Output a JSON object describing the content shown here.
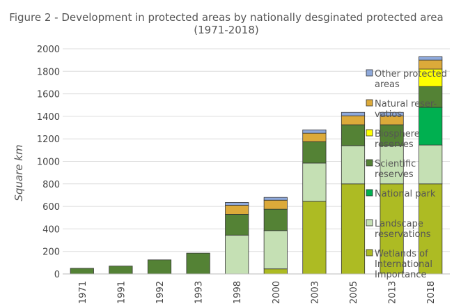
{
  "chart_data": {
    "type": "bar",
    "stacked": true,
    "title_lines": [
      "Figure 2 -  Development in protected areas by nationally desginated protected area",
      "(1971-2018)"
    ],
    "xlabel": "",
    "ylabel": "Square km",
    "ylim": [
      0,
      2000
    ],
    "yticks": [
      "0",
      "200",
      "400",
      "600",
      "800",
      "1000",
      "1200",
      "1400",
      "1600",
      "1800",
      "2000"
    ],
    "grid": true,
    "legend_placement": "right",
    "categories": [
      "1971",
      "1991",
      "1992",
      "1993",
      "1998",
      "2000",
      "2003",
      "2005",
      "2013",
      "2018"
    ],
    "series": [
      {
        "name": "Wetlands of International Importance",
        "legend_lines": [
          "Wetlands of",
          "International",
          "Importance"
        ],
        "color": "#adbb23",
        "values": [
          0,
          0,
          0,
          0,
          0,
          45,
          645,
          800,
          800,
          800
        ]
      },
      {
        "name": "Landscape reservations",
        "legend_lines": [
          "Landscape",
          "reservations"
        ],
        "color": "#c5e0b4",
        "values": [
          0,
          0,
          0,
          0,
          345,
          340,
          340,
          340,
          340,
          345
        ]
      },
      {
        "name": "National park",
        "legend_lines": [
          "National park"
        ],
        "color": "#00b050",
        "values": [
          0,
          0,
          0,
          0,
          0,
          0,
          0,
          0,
          0,
          335
        ]
      },
      {
        "name": "Scientific reserves",
        "legend_lines": [
          "Scientific",
          "reserves"
        ],
        "color": "#548235",
        "values": [
          50,
          70,
          125,
          185,
          185,
          190,
          190,
          185,
          185,
          185
        ]
      },
      {
        "name": "Biosphere reserves",
        "legend_lines": [
          "Biosphere",
          "reserves"
        ],
        "color": "#ffff00",
        "values": [
          0,
          0,
          0,
          0,
          0,
          0,
          0,
          0,
          0,
          155
        ]
      },
      {
        "name": "Natural reservations",
        "legend_lines": [
          "Natural reser-",
          "vatios"
        ],
        "color": "#dcaa3a",
        "values": [
          0,
          0,
          0,
          0,
          80,
          80,
          75,
          80,
          80,
          80
        ]
      },
      {
        "name": "Other protected areas",
        "legend_lines": [
          "Other protected",
          "areas"
        ],
        "color": "#8ea9db",
        "values": [
          0,
          0,
          0,
          0,
          25,
          25,
          30,
          30,
          30,
          30
        ]
      }
    ]
  }
}
